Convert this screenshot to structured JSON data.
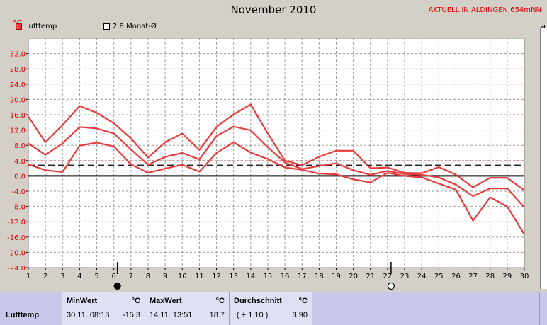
{
  "chart_data": {
    "type": "line",
    "title": "November 2010",
    "station": "AKTUELL IN ALDINGEN 654mNN",
    "unit": "°C",
    "edge_letter": "d",
    "x": [
      1,
      2,
      3,
      4,
      5,
      6,
      7,
      8,
      9,
      10,
      11,
      12,
      13,
      14,
      15,
      16,
      17,
      18,
      19,
      20,
      21,
      22,
      23,
      24,
      25,
      26,
      27,
      28,
      29,
      30
    ],
    "xlim": [
      1,
      30
    ],
    "ylim": [
      -24,
      36
    ],
    "yticks": [
      32.0,
      28.0,
      24.0,
      20.0,
      16.0,
      12.0,
      8.0,
      4.0,
      0.0,
      -4.0,
      -8.0,
      -12.0,
      -16.0,
      -20.0,
      -24.0
    ],
    "ytick_labels": [
      "32.0",
      "28.0",
      "24.0",
      "20.0",
      "16.0",
      "12.0",
      "8.0",
      "4.0",
      "0.0",
      "-4.0",
      "-8.0",
      "-12.0",
      "-16.0",
      "-20.0",
      "-24.0"
    ],
    "grid": true,
    "legend": [
      {
        "label": "Lufttemp",
        "color": "#e83c3c"
      },
      {
        "label": "2.8 Monat-Ø",
        "color": "#000000"
      }
    ],
    "series": [
      {
        "values": [
          15.5,
          8.8,
          13.3,
          18.3,
          16.5,
          13.8,
          9.8,
          4.8,
          8.8,
          11.1,
          6.8,
          12.8,
          16.1,
          18.7,
          11.1,
          4.0,
          2.8,
          5.0,
          6.6,
          6.6,
          2.0,
          2.2,
          0.8,
          0.7,
          2.3,
          0.3,
          -3.0,
          -0.5,
          -0.5,
          -3.8
        ]
      },
      {
        "values": [
          8.5,
          5.5,
          8.5,
          12.8,
          12.4,
          11.1,
          6.9,
          2.9,
          5.0,
          6.0,
          4.3,
          10.4,
          12.9,
          11.9,
          7.5,
          3.5,
          1.8,
          2.6,
          3.3,
          1.5,
          0.3,
          1.3,
          0.5,
          0.3,
          -0.4,
          -2.3,
          -5.3,
          -3.3,
          -3.3,
          -8.2
        ]
      },
      {
        "values": [
          3.0,
          1.5,
          1.0,
          7.9,
          8.7,
          7.7,
          3.0,
          0.8,
          1.9,
          2.9,
          1.1,
          6.0,
          8.8,
          6.1,
          4.4,
          2.2,
          1.6,
          0.6,
          0.4,
          -0.9,
          -1.7,
          0.8,
          0.0,
          -0.4,
          -2.0,
          -3.6,
          -11.7,
          -5.6,
          -8.0,
          -15.3
        ]
      }
    ],
    "reference_lines": [
      {
        "label": "2.8 Monat-Ø",
        "value": 2.8,
        "color": "#000000",
        "style": "dashed"
      },
      {
        "value": 3.9,
        "color": "#e83c3c",
        "style": "dashed"
      },
      {
        "value": 0.0,
        "color": "#000000",
        "style": "solid"
      }
    ],
    "moon_markers": [
      {
        "day": 6,
        "phase": "new-moon"
      },
      {
        "day": 22,
        "phase": "full-moon"
      }
    ]
  },
  "stats_table": {
    "row_label": "Lufttemp",
    "unit": "°C",
    "min": {
      "label": "MinWert",
      "datetime": "30.11.  08:13",
      "value": "-15.3"
    },
    "max": {
      "label": "MaxWert",
      "datetime": "14.11.  13:51",
      "value": "18.7"
    },
    "avg": {
      "label": "Durchschnitt",
      "delta": "( + 1.10 )",
      "value": "3.90"
    }
  }
}
